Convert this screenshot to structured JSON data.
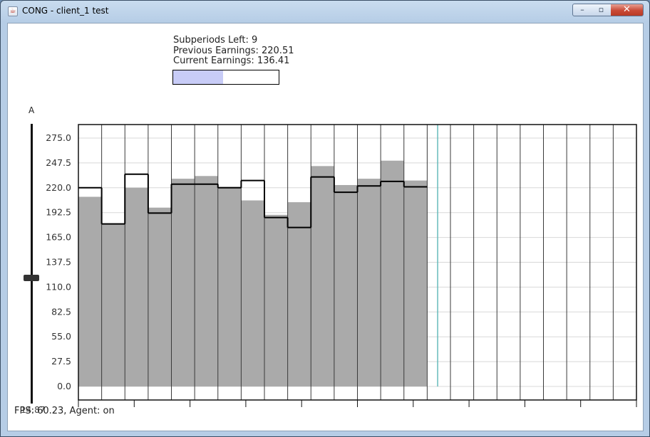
{
  "window": {
    "title": "CONG - client_1 test",
    "close_glyph": "✕",
    "min_glyph": "–",
    "max_glyph": "▫"
  },
  "info": {
    "subperiods": "Subperiods Left: 9",
    "previous": "Previous Earnings: 220.51",
    "current": "Current Earnings: 136.41"
  },
  "progress": {
    "fraction": 0.47,
    "fill_color": "#c8ccf7"
  },
  "slider": {
    "label": "A",
    "stray_text": "14.87"
  },
  "status": {
    "fps_text": "FPS: 60.23, Agent: on"
  },
  "chart_data": {
    "type": "bar",
    "ylim": [
      0,
      275
    ],
    "y_ticks": [
      "0.0",
      "27.5",
      "55.0",
      "82.5",
      "110.0",
      "137.5",
      "165.0",
      "192.5",
      "220.0",
      "247.5",
      "275.0"
    ],
    "total_periods": 24,
    "current_period": 15,
    "bar_color": "#aaaaaa",
    "series": [
      {
        "name": "filled",
        "values": [
          210,
          180,
          220,
          198,
          230,
          233,
          221,
          206,
          190,
          204,
          244,
          223,
          230,
          250,
          228
        ]
      },
      {
        "name": "outline",
        "values": [
          220,
          180,
          235,
          192,
          224,
          224,
          220,
          228,
          187,
          176,
          232,
          215,
          222,
          227,
          221
        ]
      }
    ]
  }
}
